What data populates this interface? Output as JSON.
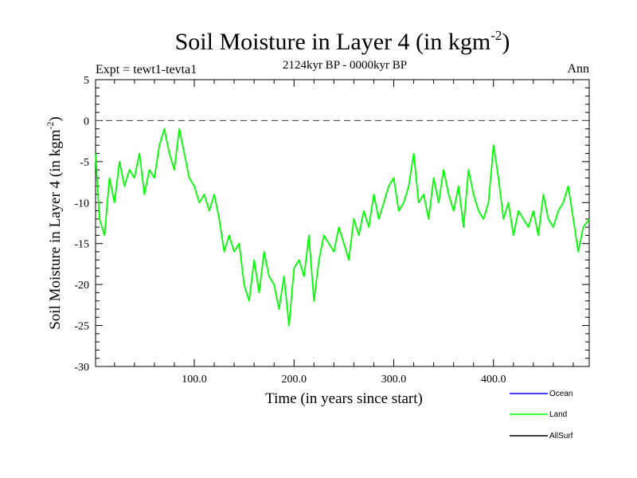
{
  "chart_data": {
    "type": "line",
    "title": "Soil Moisture in Layer 4 (in kgm",
    "title_sup": "-2",
    "title_close": ")",
    "subtitle": "2124kyr BP - 0000kyr BP",
    "expt_label": "Expt = tewt1-tevta1",
    "season": "Ann",
    "xlabel": "Time (in years since start)",
    "ylabel": "Soil Moisture in Layer 4 (in kgm",
    "ylabel_sup": "-2",
    "ylabel_close": ")",
    "xlim": [
      1,
      496
    ],
    "ylim": [
      -30,
      5
    ],
    "x_ticks": [
      100,
      200,
      300,
      400
    ],
    "x_tick_labels": [
      "100.0",
      "200.0",
      "300.0",
      "400.0"
    ],
    "y_ticks": [
      5,
      0,
      -5,
      -10,
      -15,
      -20,
      -25,
      -30
    ],
    "y_tick_labels": [
      "5",
      "0",
      "-5",
      "-10",
      "-15",
      "-20",
      "-25",
      "-30"
    ],
    "reference_line": 0,
    "series": [
      {
        "name": "Ocean",
        "color": "#0000ff",
        "values": []
      },
      {
        "name": "Land",
        "color": "#00ff00",
        "x": [
          1,
          5,
          10,
          15,
          20,
          25,
          30,
          35,
          40,
          45,
          50,
          55,
          60,
          65,
          70,
          75,
          80,
          85,
          90,
          95,
          100,
          105,
          110,
          115,
          120,
          125,
          130,
          135,
          140,
          145,
          150,
          155,
          160,
          165,
          170,
          175,
          180,
          185,
          190,
          195,
          200,
          205,
          210,
          215,
          220,
          225,
          230,
          235,
          240,
          245,
          250,
          255,
          260,
          265,
          270,
          275,
          280,
          285,
          290,
          295,
          300,
          305,
          310,
          315,
          320,
          325,
          330,
          335,
          340,
          345,
          350,
          355,
          360,
          365,
          370,
          375,
          380,
          385,
          390,
          395,
          400,
          405,
          410,
          415,
          420,
          425,
          430,
          435,
          440,
          445,
          450,
          455,
          460,
          465,
          470,
          475,
          480,
          485,
          490,
          496
        ],
        "values": [
          -4,
          -12,
          -14,
          -7,
          -10,
          -5,
          -8,
          -6,
          -7,
          -4,
          -9,
          -6,
          -7,
          -3,
          -1,
          -4,
          -6,
          -1,
          -4,
          -7,
          -8,
          -10,
          -9,
          -11,
          -9,
          -12,
          -16,
          -14,
          -16,
          -15,
          -20,
          -22,
          -17,
          -21,
          -16,
          -19,
          -20,
          -23,
          -19,
          -25,
          -18,
          -17,
          -19,
          -14,
          -22,
          -17,
          -14,
          -15,
          -16,
          -13,
          -15,
          -17,
          -12,
          -14,
          -11,
          -13,
          -9,
          -12,
          -10,
          -8,
          -7,
          -11,
          -10,
          -8,
          -4,
          -10,
          -9,
          -12,
          -7,
          -10,
          -6,
          -9,
          -11,
          -8,
          -13,
          -6,
          -9,
          -11,
          -12,
          -10,
          -3,
          -7,
          -12,
          -10,
          -14,
          -11,
          -12,
          -13,
          -11,
          -14,
          -9,
          -12,
          -13,
          -11,
          -10,
          -8,
          -12,
          -16,
          -13,
          -12
        ]
      },
      {
        "name": "AllSurf",
        "color": "#000000",
        "values": []
      }
    ]
  }
}
